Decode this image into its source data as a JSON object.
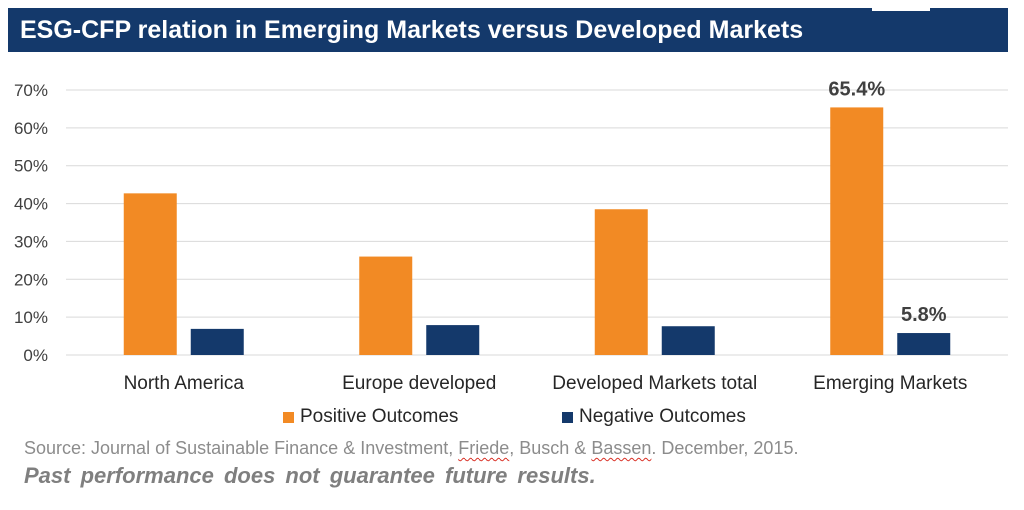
{
  "header": {
    "title": "ESG-CFP relation in Emerging Markets versus Developed Markets"
  },
  "colors": {
    "title_bar": "#14396b",
    "positive": "#f28a24",
    "negative": "#14396b",
    "gridline": "#d9d9d9"
  },
  "chart_data": {
    "type": "bar",
    "categories": [
      "North America",
      "Europe developed",
      "Developed Markets total",
      "Emerging Markets"
    ],
    "series": [
      {
        "name": "Positive Outcomes",
        "values": [
          42.7,
          26.0,
          38.5,
          65.4
        ]
      },
      {
        "name": "Negative Outcomes",
        "values": [
          6.9,
          7.9,
          7.6,
          5.8
        ]
      }
    ],
    "ylim": [
      0,
      70
    ],
    "yticks": [
      0,
      10,
      20,
      30,
      40,
      50,
      60,
      70
    ],
    "ytick_labels": [
      "0%",
      "10%",
      "20%",
      "30%",
      "40%",
      "50%",
      "60%",
      "70%"
    ],
    "data_labels": [
      {
        "series": 0,
        "category": 3,
        "text": "65.4%"
      },
      {
        "series": 1,
        "category": 3,
        "text": "5.8%"
      }
    ],
    "grid": true,
    "legend_position": "bottom"
  },
  "footer": {
    "source_prefix": "Source: Journal of Sustainable Finance & Investment, ",
    "source_name1": "Friede",
    "source_mid": ", Busch & ",
    "source_name2": "Bassen",
    "source_suffix": ". December, 2015.",
    "disclaimer": "Past performance  does not guarantee  future results."
  }
}
